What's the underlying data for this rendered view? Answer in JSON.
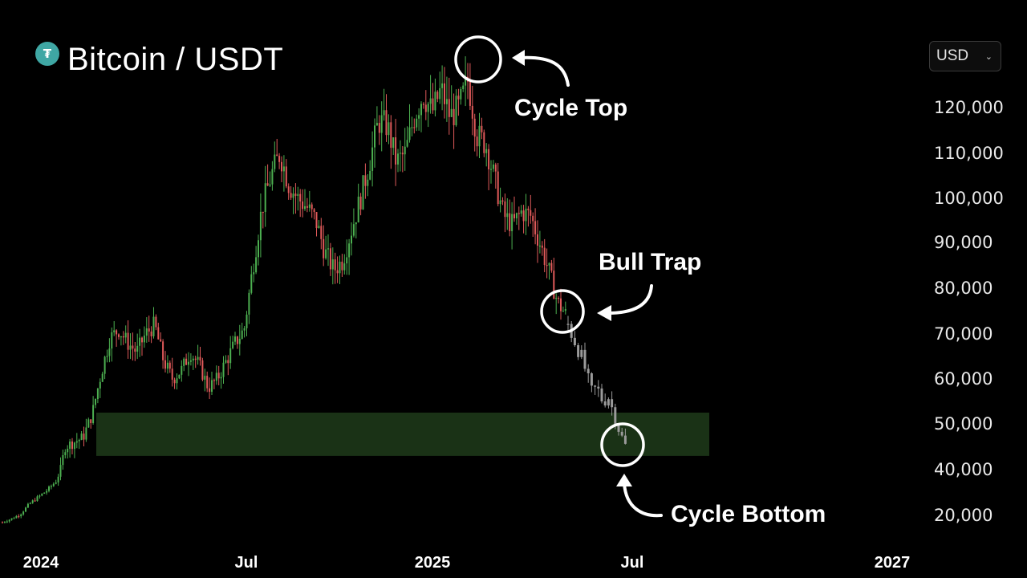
{
  "header": {
    "title": "Bitcoin / USDT",
    "logo_icon": "tether-t-icon"
  },
  "currency": {
    "selected": "USD",
    "chevron_icon": "chevron-down-icon"
  },
  "colors": {
    "background": "#000000",
    "up_candle": "#4caf50",
    "down_candle": "#e05a5a",
    "projection_candle": "#9a9a9a",
    "support_zone": "#1f3b1a",
    "annotation": "#ffffff"
  },
  "chart_data": {
    "type": "candlestick",
    "title": "Bitcoin / USDT",
    "y_ticks": [
      "120,000",
      "110,000",
      "100,000",
      "90,000",
      "80,000",
      "70,000",
      "60,000",
      "50,000",
      "40,000",
      "20,000"
    ],
    "x_ticks": [
      "2024",
      "Jul",
      "2025",
      "Jul",
      "2027"
    ],
    "support_zone": {
      "from": 43000,
      "to": 52500,
      "label": ""
    },
    "annotations": [
      {
        "label": "Cycle Top",
        "value": 126000
      },
      {
        "label": "Bull Trap",
        "value": 74000
      },
      {
        "label": "Cycle Bottom",
        "value": 45000
      }
    ],
    "historical_closes": [
      17000,
      18500,
      20500,
      25000,
      28000,
      31000,
      35000,
      45000,
      46000,
      47000,
      52000,
      61000,
      69000,
      71000,
      68000,
      66000,
      70000,
      72000,
      64000,
      60000,
      62000,
      66000,
      63000,
      58000,
      60000,
      64000,
      68000,
      71000,
      85000,
      98000,
      105000,
      110000,
      103000,
      100000,
      98000,
      95000,
      88000,
      84000,
      86000,
      93000,
      100000,
      108000,
      117000,
      116000,
      108000,
      110000,
      118000,
      123000,
      119000,
      124000,
      118000,
      120000,
      126000,
      114000,
      112000,
      104000,
      96000,
      94000,
      97000,
      96000,
      90000,
      84000,
      77000,
      74000
    ],
    "projected_closes": [
      72000,
      69000,
      66000,
      62000,
      57000,
      58000,
      55000,
      56000,
      52000,
      48000,
      45000
    ]
  }
}
